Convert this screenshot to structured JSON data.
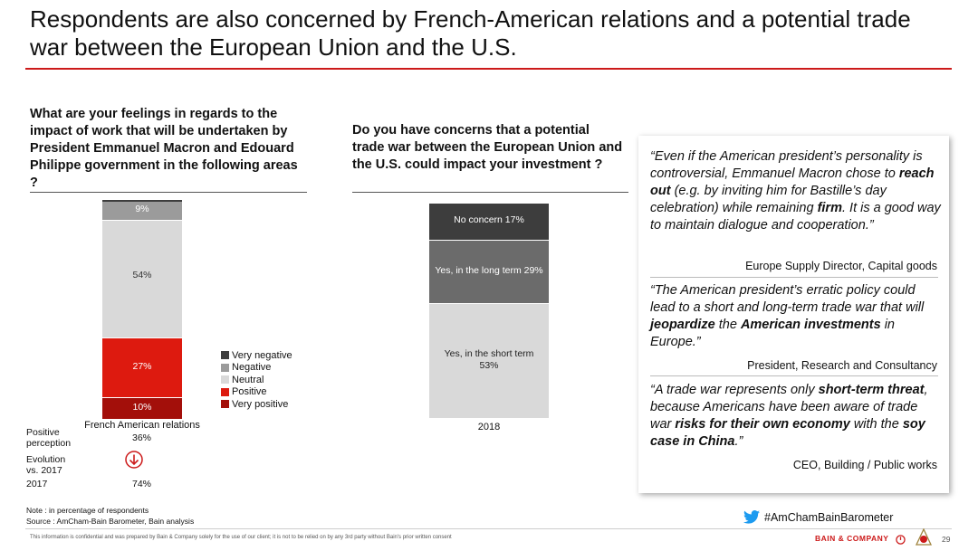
{
  "title": "Respondents are also concerned by French-American relations and a potential trade war between the European Union and the U.S.",
  "left_question": "What are your feelings in regards to the impact of work that will be undertaken by President Emmanuel Macron and Edouard Philippe government in the following areas ?",
  "mid_question": "Do you have concerns that a potential trade war between the European Union and the U.S. could impact your investment ?",
  "colors": {
    "very_negative": "#3d3d3d",
    "negative": "#9b9b9b",
    "neutral": "#d9d9d9",
    "positive": "#dd1a0f",
    "very_positive": "#a30f0a",
    "accent": "#cc1a1a"
  },
  "chart_data": [
    {
      "type": "bar",
      "stacked": true,
      "categories": [
        "French American relations"
      ],
      "series": [
        {
          "name": "Very negative",
          "values": [
            0
          ],
          "label": ""
        },
        {
          "name": "Negative",
          "values": [
            9
          ],
          "label": "9%"
        },
        {
          "name": "Neutral",
          "values": [
            54
          ],
          "label": "54%"
        },
        {
          "name": "Positive",
          "values": [
            27
          ],
          "label": "27%"
        },
        {
          "name": "Very positive",
          "values": [
            10
          ],
          "label": "10%"
        }
      ],
      "legend": [
        "Very negative",
        "Negative",
        "Neutral",
        "Positive",
        "Very positive"
      ],
      "legend_position": "right",
      "positive_perception": {
        "label": "Positive perception",
        "value": "36%"
      },
      "evolution": {
        "label": "Evolution vs. 2017",
        "icon": "down-arrow-circle-icon"
      },
      "year_2017": {
        "label": "2017",
        "value": "74%"
      }
    },
    {
      "type": "bar",
      "stacked": true,
      "categories": [
        "2018"
      ],
      "series": [
        {
          "name": "Yes, in the short term",
          "values": [
            53
          ],
          "label": "Yes, in the short term 53%"
        },
        {
          "name": "Yes, in the long term",
          "values": [
            29
          ],
          "label": "Yes, in the long term 29%"
        },
        {
          "name": "No concern",
          "values": [
            17
          ],
          "label": "No concern 17%"
        }
      ]
    }
  ],
  "left_labels": {
    "category": "French American relations",
    "pos_label": "Positive perception",
    "pos_label_1": "Positive",
    "pos_label_2": "perception",
    "pos_value": "36%",
    "evo_label_1": "Evolution",
    "evo_label_2": "vs. 2017",
    "year_label": "2017",
    "year_value": "74%"
  },
  "mid_labels": {
    "seg_no": "No concern 17%",
    "seg_long": "Yes, in the long term 29%",
    "seg_short_1": "Yes, in the short term",
    "seg_short_2": "53%",
    "category": "2018"
  },
  "quotes": [
    {
      "parts": [
        {
          "t": "“Even if the American president’s personality is controversial, Emmanuel Macron chose to ",
          "b": false
        },
        {
          "t": "reach out",
          "b": true
        },
        {
          "t": " (e.g. by inviting him for Bastille’s day celebration) while remaining ",
          "b": false
        },
        {
          "t": "firm",
          "b": true
        },
        {
          "t": ". It is a good way to maintain dialogue and cooperation.”",
          "b": false
        }
      ],
      "attribution": "Europe Supply Director, Capital goods"
    },
    {
      "parts": [
        {
          "t": "“The American president’s erratic policy could lead to a short and long-term trade war that will ",
          "b": false
        },
        {
          "t": "jeopardize",
          "b": true
        },
        {
          "t": " the ",
          "b": false
        },
        {
          "t": "American investments",
          "b": true
        },
        {
          "t": " in Europe.”",
          "b": false
        }
      ],
      "attribution": "President, Research and Consultancy"
    },
    {
      "parts": [
        {
          "t": "“A trade war represents only ",
          "b": false
        },
        {
          "t": "short-term threat",
          "b": true
        },
        {
          "t": ", because Americans have been aware of trade war ",
          "b": false
        },
        {
          "t": "risks for their own economy",
          "b": true
        },
        {
          "t": " with the ",
          "b": false
        },
        {
          "t": "soy case in China",
          "b": true
        },
        {
          "t": ".”",
          "b": false
        }
      ],
      "attribution": "CEO, Building / Public works"
    }
  ],
  "note": "Note : in percentage of respondents",
  "source": "Source : AmCham-Bain Barometer, Bain analysis",
  "hashtag": "#AmChamBainBarometer",
  "confidential": "This information is confidential and was prepared by Bain & Company solely for the use of our client; it is not to be relied on by any 3rd party without Bain's prior written consent",
  "brand": "BAIN & COMPANY",
  "page_number": "29"
}
